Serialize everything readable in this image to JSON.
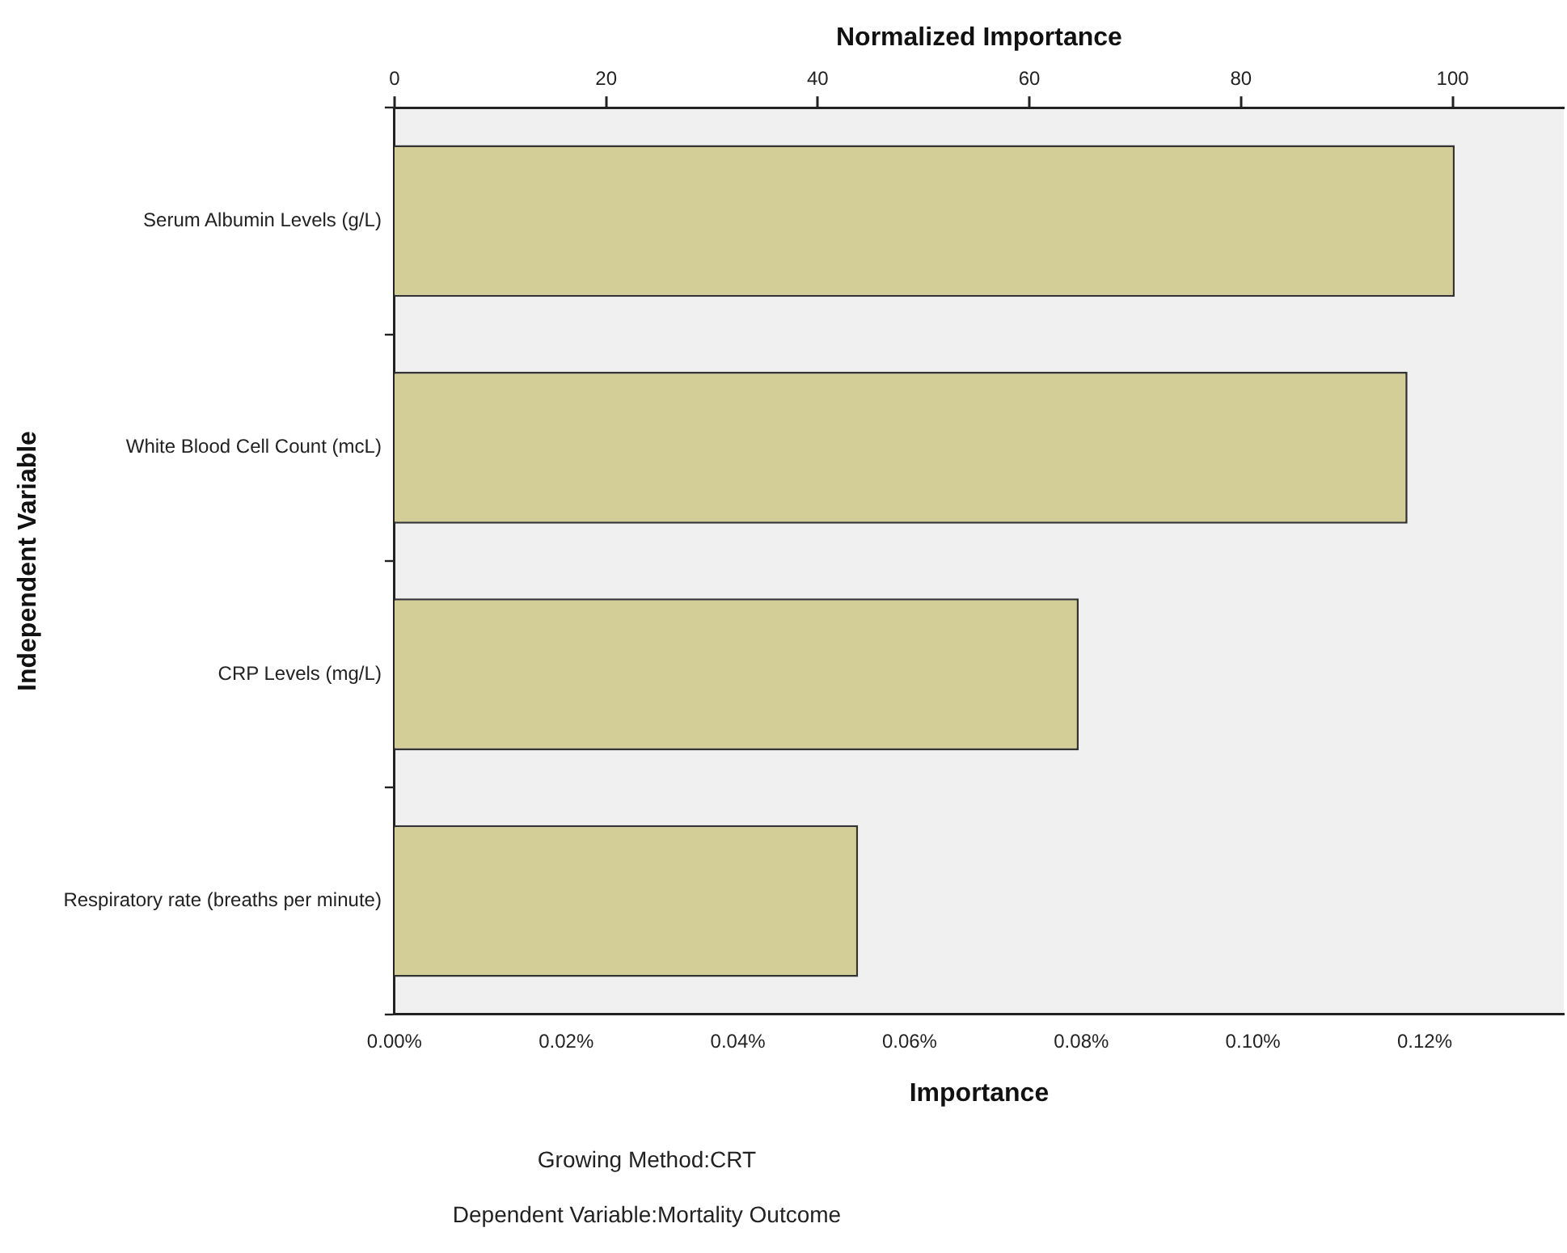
{
  "chart_data": {
    "type": "bar",
    "orientation": "horizontal",
    "xlabel": "Importance",
    "x2label": "Normalized Importance",
    "ylabel": "Independent Variable",
    "categories": [
      "Serum Albumin Levels (g/L)",
      "White Blood Cell Count (mcL)",
      "CRP Levels (mg/L)",
      "Respiratory rate (breaths per minute)"
    ],
    "values": [
      0.1235,
      0.118,
      0.0797,
      0.054
    ],
    "color": "#d3ce98",
    "xlim": [
      0,
      0.1362
    ],
    "xticks": [
      {
        "value": 0,
        "label": "0.00%"
      },
      {
        "value": 0.02,
        "label": "0.02%"
      },
      {
        "value": 0.04,
        "label": "0.04%"
      },
      {
        "value": 0.06,
        "label": "0.06%"
      },
      {
        "value": 0.08,
        "label": "0.08%"
      },
      {
        "value": 0.1,
        "label": "0.10%"
      },
      {
        "value": 0.12,
        "label": "0.12%"
      }
    ],
    "x2lim": [
      0,
      110.5
    ],
    "x2ticks": [
      0,
      20,
      40,
      60,
      80,
      100
    ],
    "grid": false,
    "legend": false,
    "annotations": [
      "Growing Method:CRT",
      "Dependent Variable:Mortality Outcome"
    ]
  }
}
